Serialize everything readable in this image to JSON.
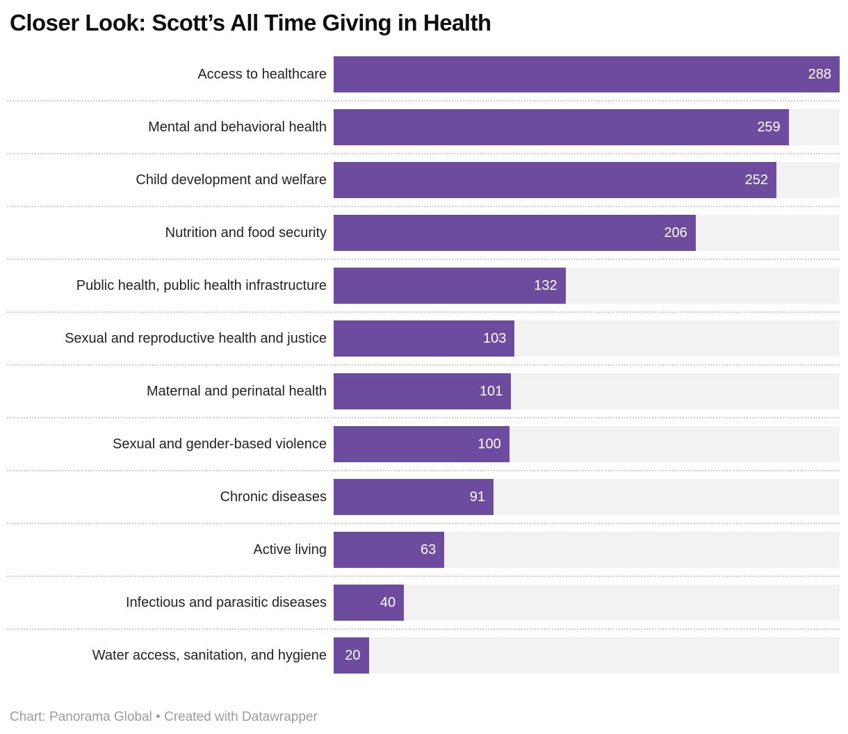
{
  "title": "Closer Look: Scott’s All Time Giving in Health",
  "footer": {
    "text": "Chart: Panorama Global • Created with Datawrapper"
  },
  "colors": {
    "bar": "#6d4c9f",
    "track": "#f2f2f2",
    "separator": "#cccccc",
    "value_label": "#ffffff",
    "title": "#0f0f0f",
    "category_label": "#222222",
    "footer": "#9c9c9c"
  },
  "chart_data": {
    "type": "bar",
    "orientation": "horizontal",
    "title": "Closer Look: Scott’s All Time Giving in Health",
    "categories": [
      "Access to healthcare",
      "Mental and behavioral health",
      "Child development and welfare",
      "Nutrition and food security",
      "Public health, public health infrastructure",
      "Sexual and reproductive health and justice",
      "Maternal and perinatal health",
      "Sexual and gender-based violence",
      "Chronic diseases",
      "Active living",
      "Infectious and parasitic diseases",
      "Water access, sanitation, and hygiene"
    ],
    "values": [
      288,
      259,
      252,
      206,
      132,
      103,
      101,
      100,
      91,
      63,
      40,
      20
    ],
    "xlabel": "",
    "ylabel": "",
    "xlim": [
      0,
      288
    ],
    "grid": "dotted-row-separators",
    "legend": "none",
    "value_labels": "inside-end"
  }
}
